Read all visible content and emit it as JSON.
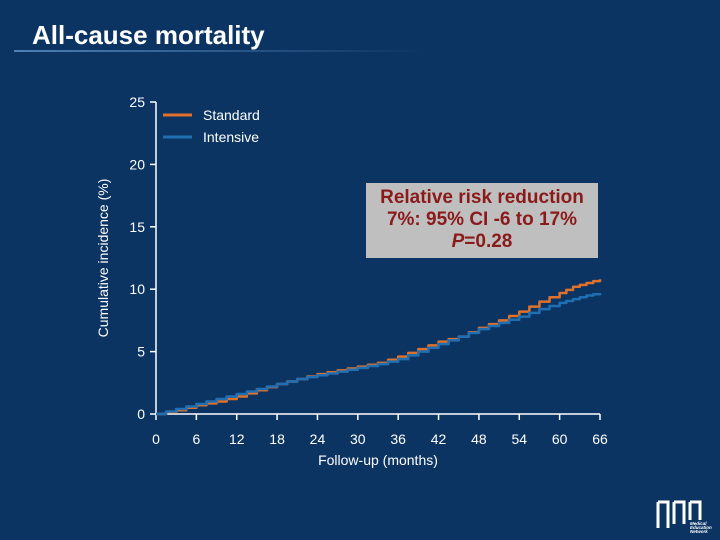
{
  "slide": {
    "title": "All-cause mortality"
  },
  "colors": {
    "background": "#0b3463",
    "standard": "#e0712a",
    "intensive": "#1f6fb2",
    "annotation_bg": "#bfbfbf",
    "annotation_text": "#8b1a1a"
  },
  "annotation": {
    "line1": "Relative risk reduction",
    "line2": "7%: 95% CI -6 to 17%",
    "p_label": "P",
    "p_value": "=0.28"
  },
  "logo": {
    "text_lines": [
      "Medical",
      "Education",
      "Network"
    ]
  },
  "chart_data": {
    "type": "line",
    "title": "All-cause mortality",
    "xlabel": "Follow-up (months)",
    "ylabel": "Cumulative incidence (%)",
    "xlim": [
      0,
      66
    ],
    "ylim": [
      0,
      25
    ],
    "xticks": [
      0,
      6,
      12,
      18,
      24,
      30,
      36,
      42,
      48,
      54,
      60,
      66
    ],
    "yticks": [
      0,
      5,
      10,
      15,
      20,
      25
    ],
    "legend": {
      "position": "top-left",
      "entries": [
        "Standard",
        "Intensive"
      ]
    },
    "series": [
      {
        "name": "Standard",
        "color": "#e0712a",
        "x": [
          0,
          3,
          6,
          9,
          12,
          15,
          18,
          21,
          24,
          27,
          30,
          33,
          36,
          39,
          42,
          45,
          48,
          51,
          54,
          57,
          60,
          62,
          64,
          66
        ],
        "y": [
          0,
          0.3,
          0.7,
          1.0,
          1.4,
          1.9,
          2.4,
          2.8,
          3.2,
          3.5,
          3.8,
          4.1,
          4.6,
          5.2,
          5.8,
          6.2,
          6.9,
          7.5,
          8.2,
          9.0,
          9.7,
          10.2,
          10.5,
          10.8
        ]
      },
      {
        "name": "Intensive",
        "color": "#1f6fb2",
        "x": [
          0,
          3,
          6,
          9,
          12,
          15,
          18,
          21,
          24,
          27,
          30,
          33,
          36,
          39,
          42,
          45,
          48,
          51,
          54,
          57,
          60,
          62,
          64,
          66
        ],
        "y": [
          0,
          0.4,
          0.8,
          1.2,
          1.6,
          2.0,
          2.4,
          2.8,
          3.1,
          3.4,
          3.7,
          4.0,
          4.4,
          5.0,
          5.6,
          6.2,
          6.8,
          7.3,
          7.8,
          8.4,
          8.9,
          9.2,
          9.5,
          9.7
        ]
      }
    ]
  }
}
